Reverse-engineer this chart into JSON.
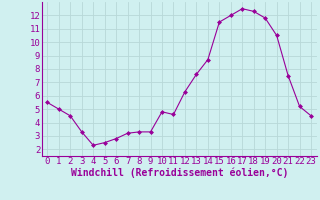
{
  "hours": [
    0,
    1,
    2,
    3,
    4,
    5,
    6,
    7,
    8,
    9,
    10,
    11,
    12,
    13,
    14,
    15,
    16,
    17,
    18,
    19,
    20,
    21,
    22,
    23
  ],
  "values": [
    5.5,
    5.0,
    4.5,
    3.3,
    2.3,
    2.5,
    2.8,
    3.2,
    3.3,
    3.3,
    4.8,
    4.6,
    6.3,
    7.6,
    8.7,
    11.5,
    12.0,
    12.5,
    12.3,
    11.8,
    10.5,
    7.5,
    5.2,
    4.5
  ],
  "line_color": "#990099",
  "marker": "D",
  "marker_size": 2,
  "bg_color": "#d0f0f0",
  "grid_color": "#b8d8d8",
  "xlabel": "Windchill (Refroidissement éolien,°C)",
  "xlabel_color": "#990099",
  "xlabel_fontsize": 7,
  "tick_color": "#990099",
  "tick_fontsize": 6.5,
  "ylim": [
    1.5,
    13.0
  ],
  "xlim": [
    -0.5,
    23.5
  ],
  "yticks": [
    2,
    3,
    4,
    5,
    6,
    7,
    8,
    9,
    10,
    11,
    12
  ],
  "xticks": [
    0,
    1,
    2,
    3,
    4,
    5,
    6,
    7,
    8,
    9,
    10,
    11,
    12,
    13,
    14,
    15,
    16,
    17,
    18,
    19,
    20,
    21,
    22,
    23
  ]
}
